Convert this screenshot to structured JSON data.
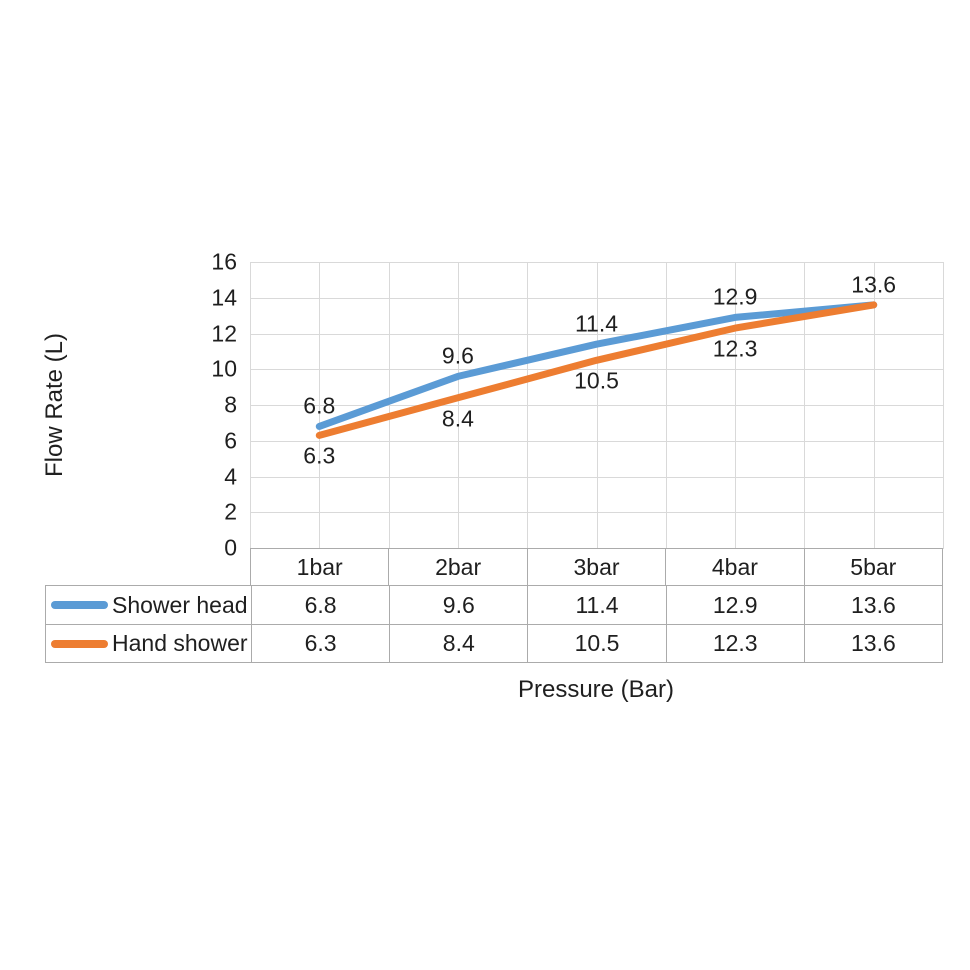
{
  "chart_data": {
    "type": "line",
    "title": "",
    "xlabel": "Pressure (Bar)",
    "ylabel": "Flow Rate (L)",
    "categories": [
      "1bar",
      "2bar",
      "3bar",
      "4bar",
      "5bar"
    ],
    "series": [
      {
        "name": "Shower head",
        "color": "#5B9BD5",
        "values": [
          6.8,
          9.6,
          11.4,
          12.9,
          13.6
        ],
        "point_labels": [
          "6.8",
          "9.6",
          "11.4",
          "12.9",
          "13.6"
        ],
        "label_side": "above"
      },
      {
        "name": "Hand shower",
        "color": "#ED7D31",
        "values": [
          6.3,
          8.4,
          10.5,
          12.3,
          13.6
        ],
        "point_labels": [
          "6.3",
          "8.4",
          "10.5",
          "12.3",
          ""
        ],
        "label_side": "below"
      }
    ],
    "ylim": [
      0,
      16
    ],
    "yticks": [
      16,
      14,
      12,
      10,
      8,
      6,
      4,
      2,
      0
    ],
    "grid": "both",
    "legend_position": "table-rows-left"
  },
  "table": {
    "row_headers": [
      "Shower head",
      "Hand shower"
    ],
    "cells": [
      [
        "6.8",
        "9.6",
        "11.4",
        "12.9",
        "13.6"
      ],
      [
        "6.3",
        "8.4",
        "10.5",
        "12.3",
        "13.6"
      ]
    ]
  },
  "colors": {
    "series_blue": "#5B9BD5",
    "series_orange": "#ED7D31",
    "gridline": "#D9D9D9",
    "border": "#ABABAB",
    "text": "#1f1f1f",
    "background": "#FFFFFF"
  }
}
